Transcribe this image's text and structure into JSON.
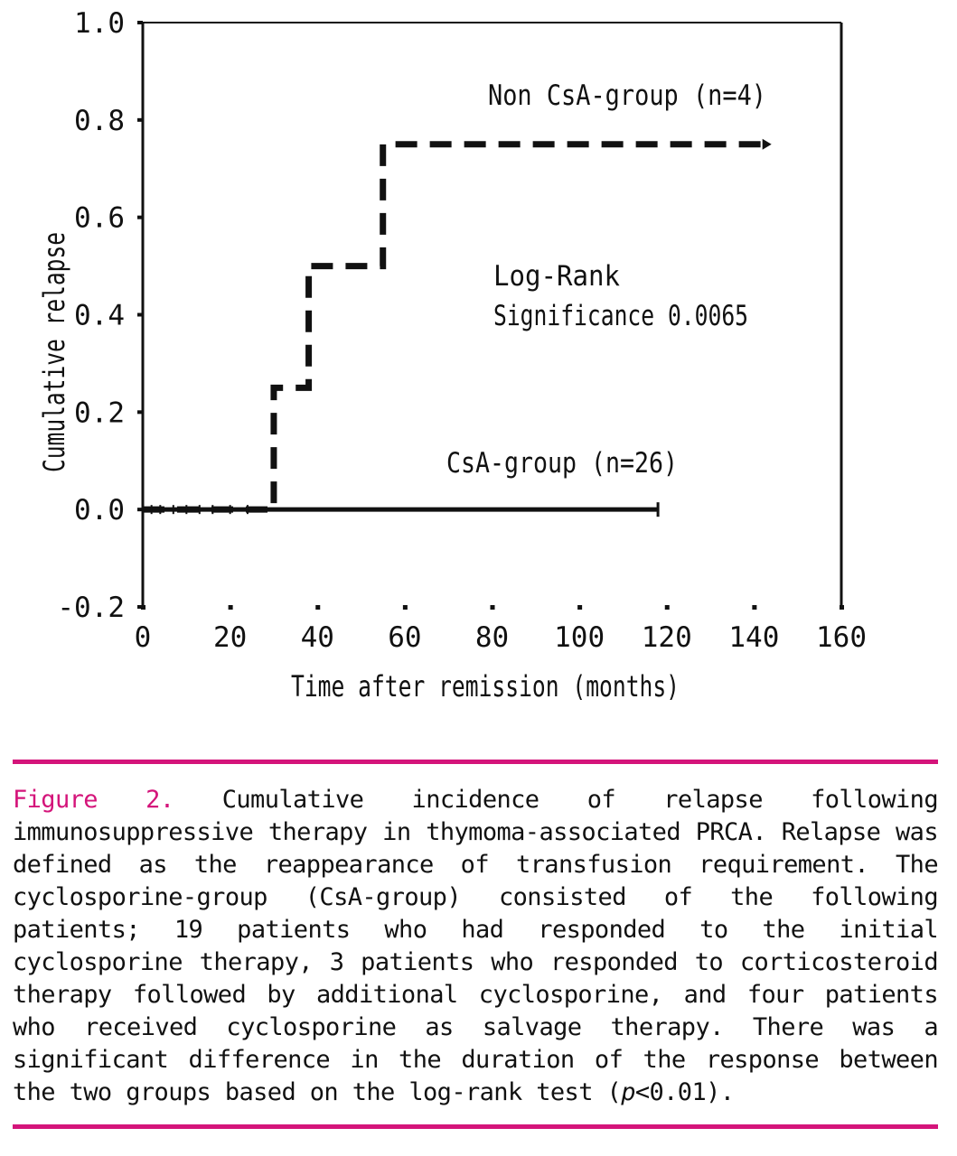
{
  "colors": {
    "accent": "#d4147a",
    "ink": "#111111"
  },
  "chart_data": {
    "type": "line",
    "xlabel": "Time after remission (months)",
    "ylabel": "Cumulative relapse",
    "xlim": [
      0,
      160
    ],
    "ylim": [
      -0.2,
      1.0
    ],
    "x_ticks": [
      0,
      20,
      40,
      60,
      80,
      100,
      120,
      140,
      160
    ],
    "y_ticks": [
      -0.2,
      0.0,
      0.2,
      0.4,
      0.6,
      0.8,
      1.0
    ],
    "y_tick_labels": [
      "-0.2",
      "0.0",
      "0.2",
      "0.4",
      "0.6",
      "0.8",
      "1.0"
    ],
    "grid": false,
    "series": [
      {
        "name": "Non CsA-group (n=4)",
        "label": "Non CsA-group (n=4)",
        "style": "dashed-step",
        "x": [
          0,
          30,
          38,
          55,
          144
        ],
        "y": [
          0.0,
          0.25,
          0.5,
          0.75,
          0.75
        ]
      },
      {
        "name": "CsA-group (n=26)",
        "label": "CsA-group (n=26)",
        "style": "solid-step",
        "x": [
          0,
          118
        ],
        "y": [
          0.0,
          0.0
        ]
      }
    ],
    "annotations": {
      "line1": "Log-Rank",
      "line2": "Significance 0.0065"
    }
  },
  "caption": {
    "label": "Figure 2.",
    "text_before_p": " Cumulative incidence of relapse following immunosuppressive therapy in thymoma-associated PRCA. Relapse was defined as the reappearance of transfusion requirement. The cyclosporine-group (CsA-group) consisted of the following patients; 19 patients who had responded to the initial cyclosporine therapy, 3 patients who responded to corticosteroid therapy followed by additional cyclosporine, and four patients who received cyclosporine as salvage therapy. There was a significant difference in the duration of the response between the two groups based on the log-rank test (",
    "p_symbol": "p",
    "text_after_p": "<0.01)."
  }
}
